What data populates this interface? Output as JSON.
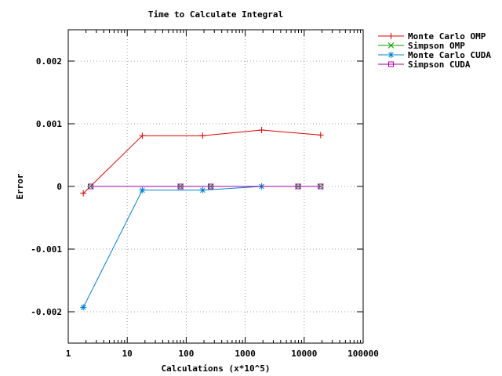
{
  "chart_data": {
    "type": "line",
    "title": "Time to Calculate Integral",
    "xlabel": "Calculations (x*10^5)",
    "ylabel": "Error",
    "x_scale": "log",
    "xlim": [
      1,
      100000
    ],
    "ylim": [
      -0.0025,
      0.0025
    ],
    "x_ticks": [
      1,
      10,
      100,
      1000,
      10000,
      100000
    ],
    "x_tick_labels": [
      "1",
      "10",
      "100",
      "1000",
      "10000",
      "100000"
    ],
    "y_ticks": [
      -0.002,
      -0.001,
      0,
      0.001,
      0.002
    ],
    "y_tick_labels": [
      "-0.002",
      "-0.001",
      "0",
      "0.001",
      "0.002"
    ],
    "grid": true,
    "legend_position": "top-right",
    "series": [
      {
        "name": "Monte Carlo OMP",
        "color": "#dd0000",
        "marker": "plus",
        "x": [
          1.8,
          18,
          190,
          1900,
          19000
        ],
        "y": [
          -0.00011,
          0.00081,
          0.00081,
          0.0009,
          0.00082
        ]
      },
      {
        "name": "Simpson OMP",
        "color": "#00a000",
        "marker": "cross",
        "x": [
          2.4,
          80,
          260,
          7900,
          19000
        ],
        "y": [
          0,
          0,
          0,
          0,
          0
        ]
      },
      {
        "name": "Monte Carlo CUDA",
        "color": "#0080d0",
        "marker": "star",
        "x": [
          1.8,
          18,
          190,
          1900
        ],
        "y": [
          -0.00193,
          -6e-05,
          -6e-05,
          0
        ]
      },
      {
        "name": "Simpson CUDA",
        "color": "#a000a0",
        "marker": "square",
        "x": [
          2.4,
          80,
          260,
          7900,
          19000
        ],
        "y": [
          0,
          0,
          0,
          0,
          0
        ]
      }
    ]
  }
}
